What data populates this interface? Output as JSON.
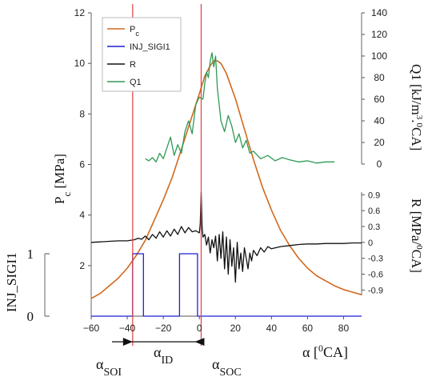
{
  "chart_data": {
    "type": "line",
    "xlabel": {
      "main": "α [",
      "sup": "0",
      "rest": "CA]"
    },
    "xlim": [
      -60,
      90
    ],
    "xticks": [
      -60,
      -40,
      -20,
      0,
      20,
      40,
      60,
      80
    ],
    "axes": {
      "pc": {
        "label_main": "P",
        "label_sub": "c",
        "label_rest": " [MPa]",
        "lim": [
          0,
          12
        ],
        "ticks": [
          2,
          4,
          6,
          8,
          10,
          12
        ]
      },
      "q1": {
        "label": "Q1 [kJ/m",
        "label_sup": "3",
        "label_rest": ".",
        "label_sup2": "0",
        "label_end": "CA]",
        "lim": [
          0,
          140
        ],
        "ticks": [
          0,
          20,
          40,
          60,
          80,
          100,
          120,
          140
        ]
      },
      "r": {
        "label": "R [MPa/",
        "label_sup": "0",
        "label_end": "CA]",
        "lim": [
          -1.0,
          0.95
        ],
        "ticks": [
          0.9,
          0.6,
          0.3,
          0,
          -0.3,
          -0.6,
          -0.9
        ]
      },
      "inj": {
        "label": "INJ_SIGI1",
        "lim": [
          0,
          1
        ],
        "ticks": [
          0,
          1
        ]
      }
    },
    "legend": {
      "position": "top-left",
      "entries": [
        {
          "name_main": "P",
          "name_sub": "c",
          "color": "#d2691e"
        },
        {
          "name_main": "INJ_SIGI1",
          "name_sub": "",
          "color": "#1f1fd6"
        },
        {
          "name_main": "R",
          "name_sub": "",
          "color": "#111111"
        },
        {
          "name_main": "Q1",
          "name_sub": "",
          "color": "#2e9a55"
        }
      ]
    },
    "markers": [
      {
        "name": "SOI",
        "x": -37,
        "color": "#e04040",
        "label_main": "α",
        "label_sub": "SOI"
      },
      {
        "name": "SOC",
        "x": 1,
        "color": "#e04040",
        "label_main": "α",
        "label_sub": "SOC"
      }
    ],
    "interval_label": {
      "label_main": "α",
      "label_sub": "ID"
    },
    "series": [
      {
        "name": "Pc",
        "color": "#d2691e",
        "x": [
          -60,
          -55,
          -50,
          -45,
          -40,
          -35,
          -30,
          -25,
          -20,
          -15,
          -10,
          -5,
          0,
          3,
          6,
          8,
          10,
          12,
          15,
          20,
          25,
          30,
          35,
          40,
          45,
          50,
          55,
          60,
          65,
          70,
          75,
          80,
          85,
          90
        ],
        "values": [
          0.7,
          0.9,
          1.2,
          1.5,
          1.9,
          2.4,
          3.0,
          3.8,
          4.6,
          5.5,
          6.6,
          7.7,
          8.8,
          9.5,
          9.9,
          10.1,
          10.1,
          10.0,
          9.6,
          8.6,
          7.4,
          6.2,
          5.1,
          4.2,
          3.4,
          2.8,
          2.3,
          1.9,
          1.6,
          1.4,
          1.2,
          1.05,
          0.95,
          0.85
        ]
      },
      {
        "name": "Q1",
        "color": "#2e9a55",
        "x": [
          -30,
          -28,
          -26,
          -24,
          -22,
          -20,
          -18,
          -16,
          -14,
          -12,
          -10,
          -8,
          -6,
          -4,
          -2,
          0,
          2,
          3,
          4,
          5,
          6,
          7,
          8,
          9,
          10,
          11,
          12,
          14,
          16,
          18,
          20,
          22,
          24,
          26,
          28,
          30,
          34,
          38,
          42,
          46,
          50,
          55,
          60,
          65,
          70,
          75
        ],
        "values": [
          5,
          3,
          6,
          2,
          10,
          5,
          15,
          25,
          8,
          18,
          10,
          30,
          40,
          28,
          55,
          62,
          60,
          75,
          85,
          80,
          95,
          103,
          90,
          100,
          70,
          55,
          40,
          30,
          45,
          35,
          20,
          28,
          15,
          22,
          10,
          12,
          5,
          8,
          3,
          6,
          4,
          2,
          3,
          1,
          2,
          2
        ]
      },
      {
        "name": "R",
        "color": "#111111",
        "x": [
          -60,
          -55,
          -50,
          -45,
          -40,
          -36,
          -34,
          -32,
          -30,
          -28,
          -26,
          -24,
          -22,
          -20,
          -18,
          -16,
          -14,
          -12,
          -10,
          -8,
          -6,
          -4,
          -2,
          0,
          0.5,
          1,
          1.5,
          2,
          3,
          4,
          5,
          6,
          7,
          8,
          9,
          10,
          11,
          12,
          13,
          14,
          15,
          16,
          17,
          18,
          19,
          20,
          21,
          22,
          23,
          24,
          25,
          26,
          27,
          28,
          29,
          30,
          32,
          34,
          36,
          38,
          40,
          45,
          50,
          55,
          60,
          65,
          70,
          75,
          80,
          85,
          90
        ],
        "values": [
          0.0,
          0.01,
          0.02,
          0.03,
          0.03,
          0.05,
          0.08,
          0.06,
          0.12,
          0.05,
          0.15,
          0.08,
          0.2,
          0.1,
          0.22,
          0.12,
          0.25,
          0.15,
          0.3,
          0.18,
          0.28,
          0.2,
          0.22,
          0.18,
          0.35,
          0.95,
          0.3,
          0.1,
          0.15,
          -0.05,
          0.1,
          -0.2,
          0.05,
          -0.1,
          0.12,
          -0.35,
          0.15,
          -0.3,
          0.2,
          -0.5,
          0.1,
          -0.6,
          0.05,
          -0.45,
          -0.1,
          -0.75,
          0.0,
          -0.5,
          -0.2,
          -0.55,
          -0.1,
          -0.3,
          -0.5,
          -0.2,
          -0.35,
          -0.15,
          -0.25,
          -0.1,
          -0.18,
          -0.08,
          -0.12,
          -0.08,
          -0.06,
          -0.04,
          -0.03,
          -0.03,
          -0.02,
          -0.02,
          -0.02,
          -0.01,
          -0.01
        ]
      },
      {
        "name": "INJ_SIGI1",
        "color": "#1f1fd6",
        "x": [
          -60,
          -37,
          -37,
          -31,
          -31,
          -11,
          -11,
          -1,
          -1,
          90
        ],
        "values": [
          0,
          0,
          1,
          1,
          0,
          0,
          1,
          1,
          0,
          0
        ]
      }
    ]
  }
}
